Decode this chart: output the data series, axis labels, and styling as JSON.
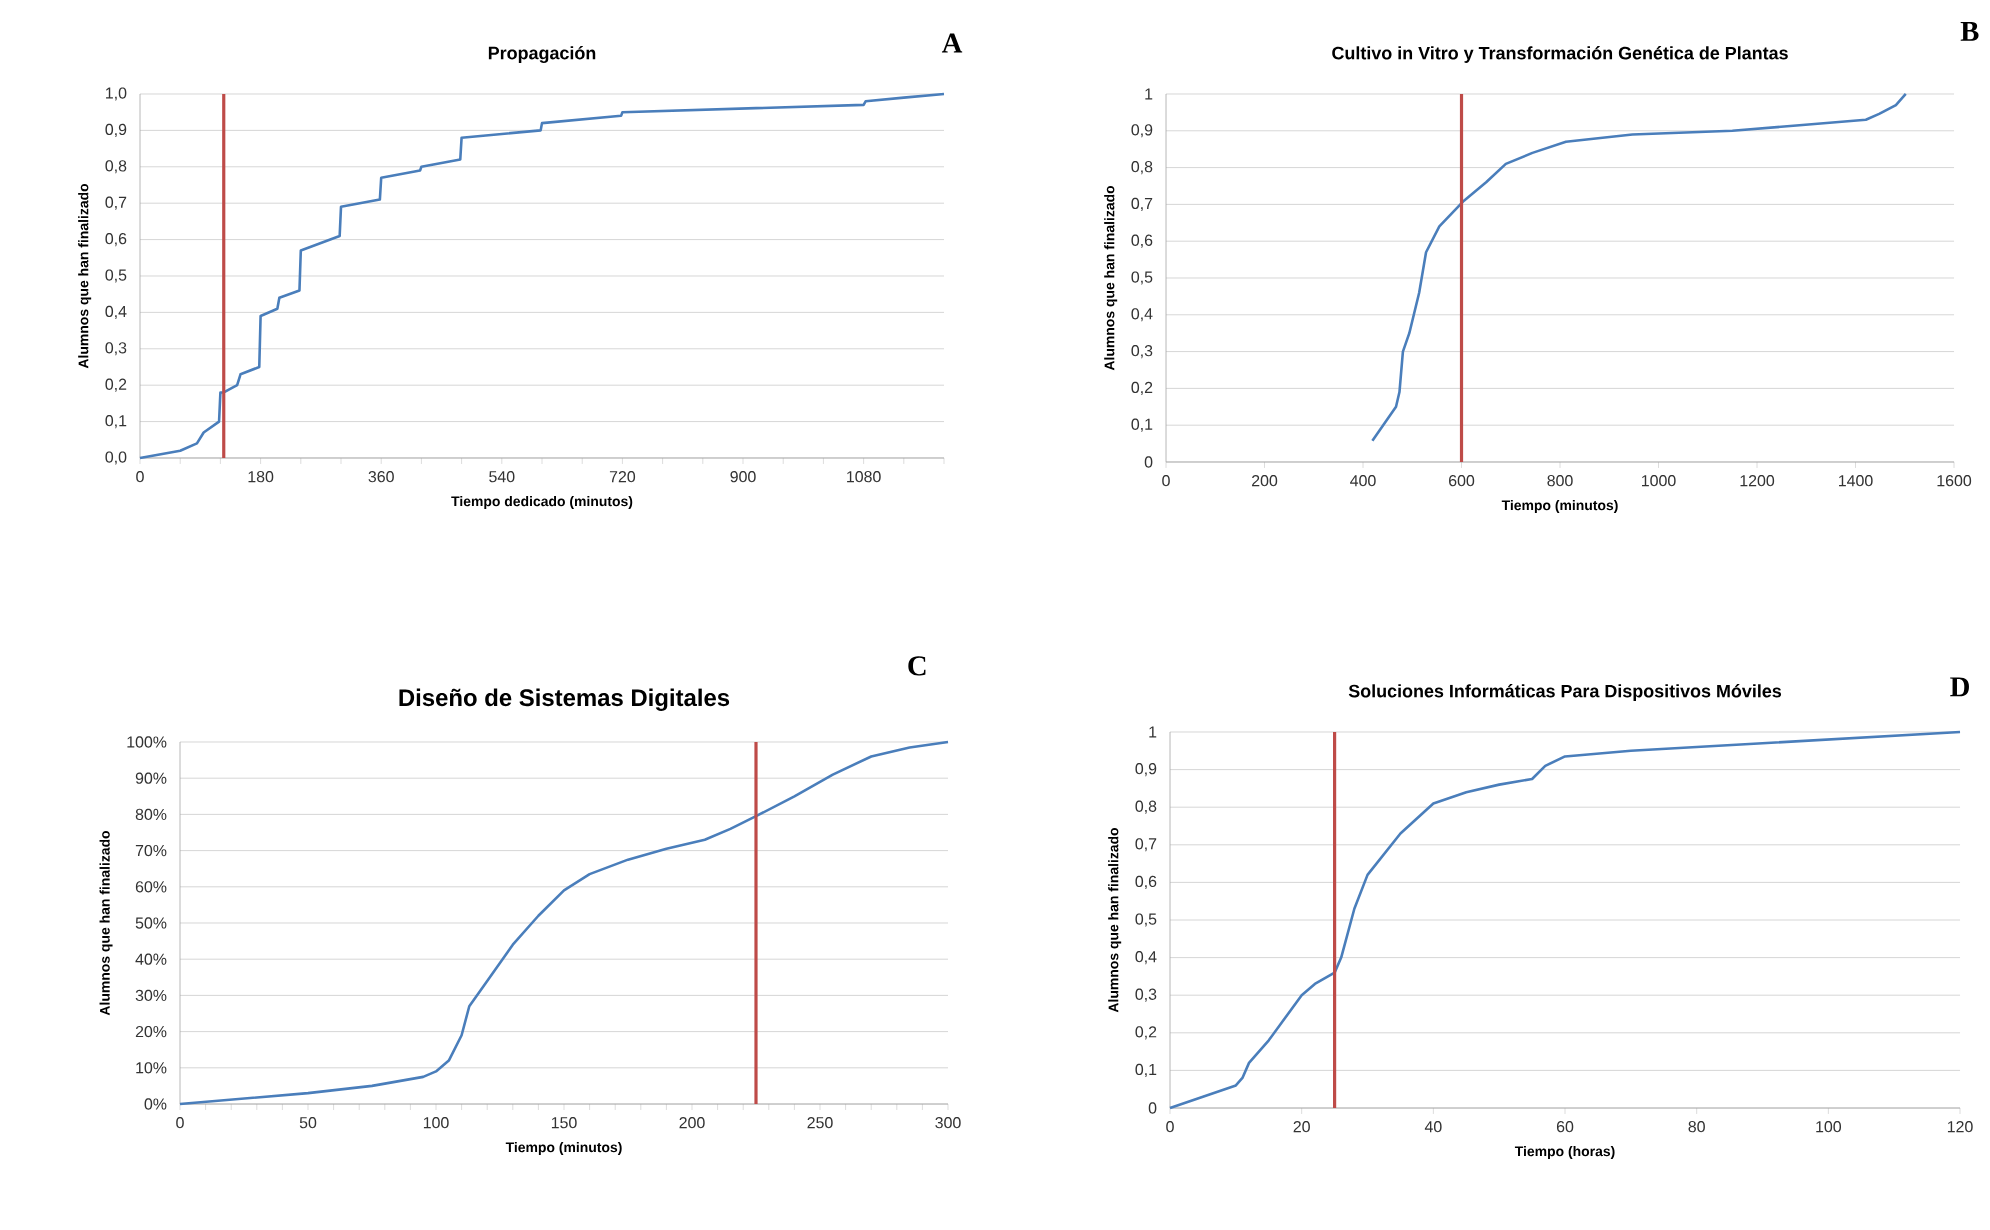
{
  "chart_data": [
    {
      "type": "line",
      "title": "Propagación",
      "xlabel": "Tiempo dedicado (minutos)",
      "ylabel": "Alumnos que han finalizado",
      "annotations": [
        "A"
      ],
      "x": [
        0,
        60,
        85,
        95,
        118,
        120,
        125,
        145,
        150,
        178,
        180,
        205,
        208,
        238,
        240,
        298,
        300,
        358,
        360,
        418,
        420,
        478,
        480,
        598,
        600,
        718,
        720,
        1080,
        1083,
        1140,
        1200
      ],
      "series": [
        {
          "color": "#4a7ebb",
          "values": [
            0,
            0.02,
            0.04,
            0.07,
            0.1,
            0.18,
            0.18,
            0.2,
            0.23,
            0.25,
            0.39,
            0.41,
            0.44,
            0.46,
            0.57,
            0.61,
            0.69,
            0.71,
            0.77,
            0.79,
            0.8,
            0.82,
            0.88,
            0.9,
            0.92,
            0.94,
            0.95,
            0.97,
            0.98,
            0.99,
            1.0
          ]
        }
      ],
      "xlim": [
        0,
        1200
      ],
      "ylim": [
        0,
        1
      ],
      "xticks": [
        0,
        {
          "value": 60,
          "label": null
        },
        {
          "value": 120,
          "label": null
        },
        180,
        {
          "value": 240,
          "label": null
        },
        {
          "value": 300,
          "label": null
        },
        360,
        {
          "value": 420,
          "label": null
        },
        {
          "value": 480,
          "label": null
        },
        540,
        {
          "value": 600,
          "label": null
        },
        {
          "value": 660,
          "label": null
        },
        720,
        {
          "value": 780,
          "label": null
        },
        {
          "value": 840,
          "label": null
        },
        900,
        {
          "value": 960,
          "label": null
        },
        {
          "value": 1020,
          "label": null
        },
        1080,
        {
          "value": 1140,
          "label": null
        },
        {
          "value": 1200,
          "label": null
        }
      ],
      "yticks": [
        {
          "value": 0,
          "label": "0,0"
        },
        {
          "value": 0.1,
          "label": "0,1"
        },
        {
          "value": 0.2,
          "label": "0,2"
        },
        {
          "value": 0.3,
          "label": "0,3"
        },
        {
          "value": 0.4,
          "label": "0,4"
        },
        {
          "value": 0.5,
          "label": "0,5"
        },
        {
          "value": 0.6,
          "label": "0,6"
        },
        {
          "value": 0.7,
          "label": "0,7"
        },
        {
          "value": 0.8,
          "label": "0,8"
        },
        {
          "value": 0.9,
          "label": "0,9"
        },
        {
          "value": 1,
          "label": "1,0"
        }
      ],
      "ref_lines": [
        {
          "axis": "x",
          "value": 125,
          "color": "#be4b48"
        }
      ],
      "grid": "y",
      "marker": "none"
    },
    {
      "type": "line",
      "title": "Cultivo in Vitro y Transformación  Genética de Plantas",
      "xlabel": "Tiempo (minutos)",
      "ylabel": "Alumnos que han finalizado",
      "annotations": [
        "B"
      ],
      "x": [
        419,
        467,
        474,
        481,
        494,
        514,
        528,
        555,
        605,
        650,
        690,
        744,
        812,
        947,
        1150,
        1286,
        1421,
        1448,
        1482,
        1502
      ],
      "series": [
        {
          "color": "#4a7ebb",
          "values": [
            0.058,
            0.15,
            0.19,
            0.3,
            0.35,
            0.46,
            0.57,
            0.64,
            0.71,
            0.76,
            0.81,
            0.84,
            0.87,
            0.89,
            0.9,
            0.915,
            0.93,
            0.946,
            0.97,
            1.0
          ]
        }
      ],
      "xlim": [
        0,
        1600
      ],
      "ylim": [
        0,
        1
      ],
      "xticks": [
        0,
        200,
        400,
        600,
        800,
        1000,
        1200,
        1400,
        1600
      ],
      "yticks": [
        0,
        {
          "value": 0.1,
          "label": "0,1"
        },
        {
          "value": 0.2,
          "label": "0,2"
        },
        {
          "value": 0.3,
          "label": "0,3"
        },
        {
          "value": 0.4,
          "label": "0,4"
        },
        {
          "value": 0.5,
          "label": "0,5"
        },
        {
          "value": 0.6,
          "label": "0,6"
        },
        {
          "value": 0.7,
          "label": "0,7"
        },
        {
          "value": 0.8,
          "label": "0,8"
        },
        {
          "value": 0.9,
          "label": "0,9"
        },
        1
      ],
      "ref_lines": [
        {
          "axis": "x",
          "value": 600,
          "color": "#be4b48"
        }
      ],
      "grid": "y",
      "marker": "none"
    },
    {
      "type": "line",
      "title": "Diseño de Sistemas Digitales",
      "xlabel": "Tiempo (minutos)",
      "ylabel": "Alumnos que han finalizado",
      "annotations": [
        "C"
      ],
      "x": [
        0,
        50,
        75,
        95,
        100,
        105,
        110,
        113,
        120,
        130,
        140,
        150,
        160,
        175,
        190,
        205,
        215,
        225,
        240,
        255,
        270,
        285,
        300
      ],
      "series": [
        {
          "color": "#4a7ebb",
          "values": [
            0,
            3,
            5,
            7.5,
            9,
            12,
            19,
            27,
            34,
            44,
            52,
            59,
            63.5,
            67.5,
            70.5,
            73,
            76,
            79.5,
            85,
            91,
            96,
            98.5,
            100
          ]
        }
      ],
      "xlim": [
        0,
        300
      ],
      "ylim": [
        0,
        100
      ],
      "xticks": [
        0,
        {
          "value": 10,
          "label": null
        },
        {
          "value": 20,
          "label": null
        },
        {
          "value": 30,
          "label": null
        },
        {
          "value": 40,
          "label": null
        },
        50,
        {
          "value": 60,
          "label": null
        },
        {
          "value": 70,
          "label": null
        },
        {
          "value": 80,
          "label": null
        },
        {
          "value": 90,
          "label": null
        },
        100,
        {
          "value": 110,
          "label": null
        },
        {
          "value": 120,
          "label": null
        },
        {
          "value": 130,
          "label": null
        },
        {
          "value": 140,
          "label": null
        },
        150,
        {
          "value": 160,
          "label": null
        },
        {
          "value": 170,
          "label": null
        },
        {
          "value": 180,
          "label": null
        },
        {
          "value": 190,
          "label": null
        },
        200,
        {
          "value": 210,
          "label": null
        },
        {
          "value": 220,
          "label": null
        },
        {
          "value": 230,
          "label": null
        },
        {
          "value": 240,
          "label": null
        },
        250,
        {
          "value": 260,
          "label": null
        },
        {
          "value": 270,
          "label": null
        },
        {
          "value": 280,
          "label": null
        },
        {
          "value": 290,
          "label": null
        },
        300
      ],
      "yticks": [
        {
          "value": 0,
          "label": "0%"
        },
        {
          "value": 10,
          "label": "10%"
        },
        {
          "value": 20,
          "label": "20%"
        },
        {
          "value": 30,
          "label": "30%"
        },
        {
          "value": 40,
          "label": "40%"
        },
        {
          "value": 50,
          "label": "50%"
        },
        {
          "value": 60,
          "label": "60%"
        },
        {
          "value": 70,
          "label": "70%"
        },
        {
          "value": 80,
          "label": "80%"
        },
        {
          "value": 90,
          "label": "90%"
        },
        {
          "value": 100,
          "label": "100%"
        }
      ],
      "ref_lines": [
        {
          "axis": "x",
          "value": 225,
          "color": "#be4b48"
        }
      ],
      "grid": "y",
      "marker": "none"
    },
    {
      "type": "line",
      "title": "Soluciones Informáticas Para Dispositivos Móviles",
      "xlabel": "Tiempo (horas)",
      "ylabel": "Alumnos que han finalizado",
      "annotations": [
        "D"
      ],
      "x": [
        0,
        5,
        10,
        11,
        12,
        15,
        20,
        22,
        25,
        26,
        28,
        30,
        35,
        40,
        45,
        50,
        55,
        57,
        60,
        70,
        90,
        120
      ],
      "series": [
        {
          "color": "#4a7ebb",
          "values": [
            0,
            0.03,
            0.06,
            0.08,
            0.12,
            0.18,
            0.3,
            0.33,
            0.36,
            0.4,
            0.53,
            0.62,
            0.73,
            0.81,
            0.84,
            0.86,
            0.875,
            0.91,
            0.935,
            0.95,
            0.97,
            1.0
          ]
        }
      ],
      "xlim": [
        0,
        120
      ],
      "ylim": [
        0,
        1
      ],
      "xticks": [
        0,
        20,
        40,
        60,
        80,
        100,
        120
      ],
      "yticks": [
        0,
        {
          "value": 0.1,
          "label": "0,1"
        },
        {
          "value": 0.2,
          "label": "0,2"
        },
        {
          "value": 0.3,
          "label": "0,3"
        },
        {
          "value": 0.4,
          "label": "0,4"
        },
        {
          "value": 0.5,
          "label": "0,5"
        },
        {
          "value": 0.6,
          "label": "0,6"
        },
        {
          "value": 0.7,
          "label": "0,7"
        },
        {
          "value": 0.8,
          "label": "0,8"
        },
        {
          "value": 0.9,
          "label": "0,9"
        },
        1
      ],
      "ref_lines": [
        {
          "axis": "x",
          "value": 25,
          "color": "#be4b48"
        }
      ],
      "grid": "y",
      "marker": "none"
    }
  ]
}
